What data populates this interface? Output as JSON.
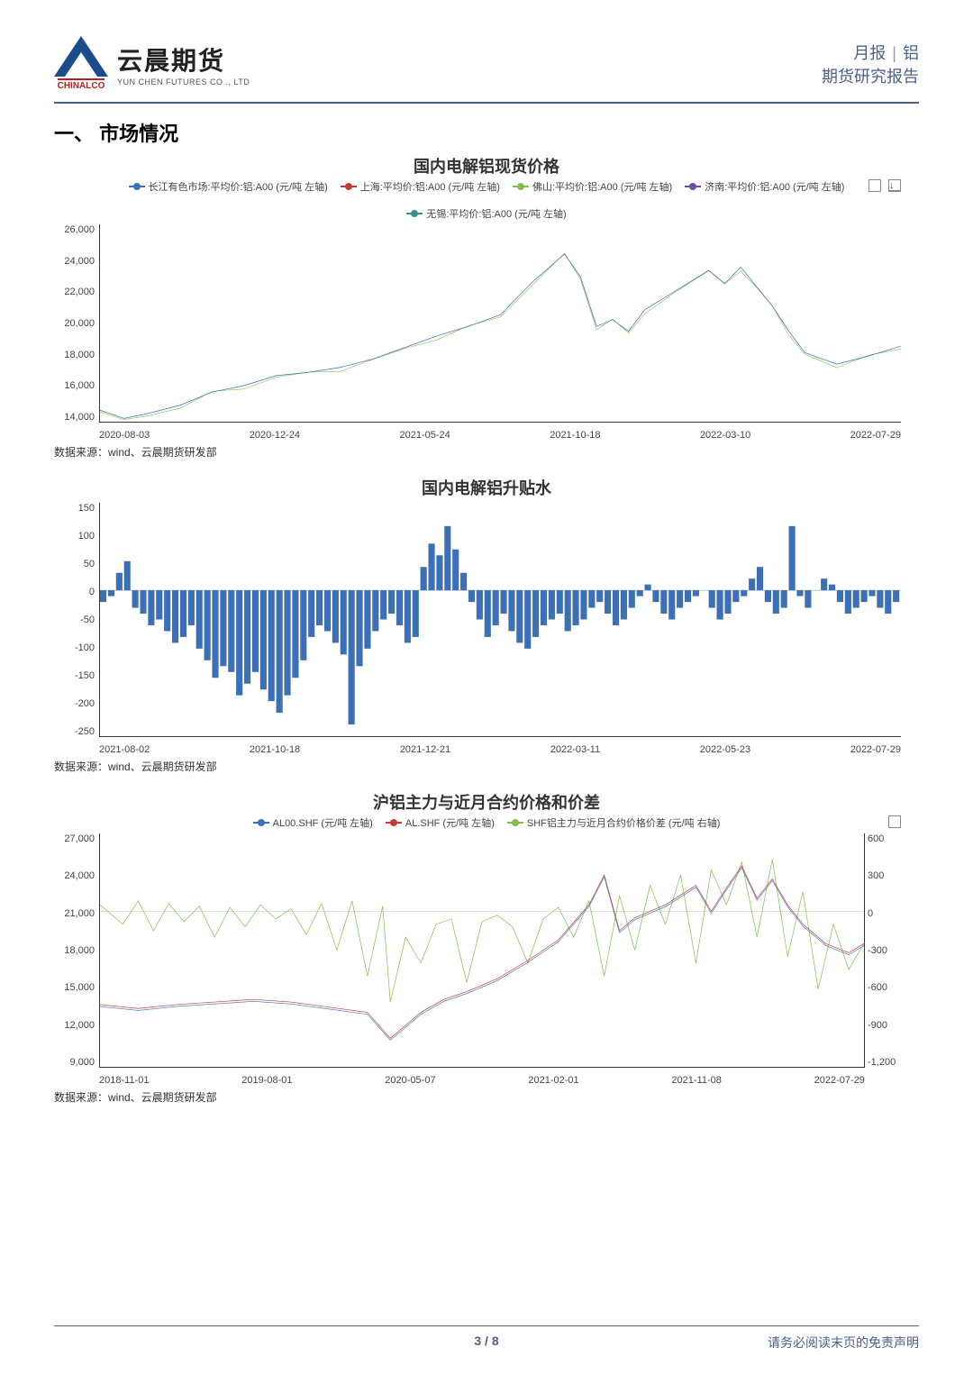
{
  "header": {
    "logo_cn": "云晨期货",
    "logo_en": "YUN CHEN FUTURES CO ., LTD",
    "chinalco": "CHINALCO",
    "right_line1_a": "月报",
    "right_line1_b": "铝",
    "right_line2": "期货研究报告"
  },
  "section_title": "一、 市场情况",
  "chart1": {
    "title": "国内电解铝现货价格",
    "type": "line",
    "legend": [
      {
        "label": "长江有色市场:平均价:铝:A00 (元/吨 左轴)",
        "color": "#3b6fb6"
      },
      {
        "label": "上海:平均价:铝:A00 (元/吨 左轴)",
        "color": "#c53a3a"
      },
      {
        "label": "佛山:平均价:铝:A00 (元/吨 左轴)",
        "color": "#7fbf4a"
      },
      {
        "label": "济南:平均价:铝:A00 (元/吨 左轴)",
        "color": "#6a4ea0"
      },
      {
        "label": "无锡:平均价:铝:A00 (元/吨 左轴)",
        "color": "#3b8f8f"
      }
    ],
    "ylim": [
      14000,
      26000
    ],
    "ytick_step": 2000,
    "y_ticks": [
      "26,000",
      "24,000",
      "22,000",
      "20,000",
      "18,000",
      "16,000",
      "14,000"
    ],
    "x_ticks": [
      "2020-08-03",
      "2020-12-24",
      "2021-05-24",
      "2021-10-18",
      "2022-03-10",
      "2022-07-29"
    ],
    "background_color": "#ffffff",
    "source": "数据来源：wind、云晨期货研发部",
    "series_main": {
      "color_a": "#3b6fb6",
      "color_b": "#7fbf4a",
      "points": [
        [
          0,
          14700
        ],
        [
          3,
          14200
        ],
        [
          6,
          14500
        ],
        [
          10,
          15000
        ],
        [
          14,
          15800
        ],
        [
          18,
          16200
        ],
        [
          22,
          16800
        ],
        [
          26,
          17000
        ],
        [
          30,
          17300
        ],
        [
          34,
          17800
        ],
        [
          38,
          18500
        ],
        [
          42,
          19200
        ],
        [
          46,
          19800
        ],
        [
          50,
          20500
        ],
        [
          54,
          22500
        ],
        [
          58,
          24200
        ],
        [
          60,
          22800
        ],
        [
          62,
          19800
        ],
        [
          64,
          20200
        ],
        [
          66,
          19500
        ],
        [
          68,
          20800
        ],
        [
          72,
          22000
        ],
        [
          76,
          23200
        ],
        [
          78,
          22400
        ],
        [
          80,
          23400
        ],
        [
          82,
          22200
        ],
        [
          84,
          21000
        ],
        [
          86,
          19500
        ],
        [
          88,
          18200
        ],
        [
          92,
          17500
        ],
        [
          96,
          18000
        ],
        [
          100,
          18600
        ]
      ]
    }
  },
  "chart2": {
    "title": "国内电解铝升贴水",
    "type": "bar",
    "ylim": [
      -250,
      150
    ],
    "ytick_step": 50,
    "y_ticks": [
      "150",
      "100",
      "50",
      "0",
      "-50",
      "-100",
      "-150",
      "-200",
      "-250"
    ],
    "x_ticks": [
      "2021-08-02",
      "2021-10-18",
      "2021-12-21",
      "2022-03-11",
      "2022-05-23",
      "2022-07-29"
    ],
    "bar_color": "#3b6fb6",
    "source": "数据来源：wind、云晨期货研发部",
    "values": [
      -20,
      -10,
      30,
      50,
      -30,
      -40,
      -60,
      -50,
      -70,
      -90,
      -80,
      -60,
      -100,
      -120,
      -150,
      -130,
      -140,
      -180,
      -160,
      -140,
      -170,
      -190,
      -210,
      -180,
      -150,
      -120,
      -80,
      -60,
      -70,
      -90,
      -110,
      -230,
      -130,
      -100,
      -70,
      -50,
      -40,
      -60,
      -90,
      -80,
      40,
      80,
      60,
      110,
      70,
      30,
      -20,
      -50,
      -80,
      -60,
      -40,
      -70,
      -90,
      -100,
      -80,
      -60,
      -50,
      -40,
      -70,
      -60,
      -50,
      -30,
      -20,
      -40,
      -60,
      -50,
      -30,
      -10,
      10,
      -20,
      -40,
      -50,
      -30,
      -20,
      -10,
      0,
      -30,
      -50,
      -40,
      -20,
      -10,
      20,
      40,
      -20,
      -40,
      -30,
      110,
      -10,
      -30,
      0,
      20,
      10,
      -20,
      -40,
      -30,
      -20,
      -10,
      -30,
      -40,
      -20
    ]
  },
  "chart3": {
    "title": "沪铝主力与近月合约价格和价差",
    "type": "line",
    "legend": [
      {
        "label": "AL00.SHF (元/吨 左轴)",
        "color": "#3b6fb6"
      },
      {
        "label": "AL.SHF (元/吨 左轴)",
        "color": "#c53a3a"
      },
      {
        "label": "SHF铝主力与近月合约价格价差 (元/吨 右轴)",
        "color": "#7fbf4a"
      }
    ],
    "ylim_left": [
      9000,
      27000
    ],
    "ytick_left_step": 3000,
    "y_ticks_left": [
      "27,000",
      "24,000",
      "21,000",
      "18,000",
      "15,000",
      "12,000",
      "9,000"
    ],
    "ylim_right": [
      -1200,
      600
    ],
    "ytick_right_step": 300,
    "y_ticks_right": [
      "600",
      "300",
      "0",
      "-300",
      "-600",
      "-900",
      "-1,200"
    ],
    "x_ticks": [
      "2018-11-01",
      "2019-08-01",
      "2020-05-07",
      "2021-02-01",
      "2021-11-08",
      "2022-07-29"
    ],
    "source": "数据来源：wind、云晨期货研发部",
    "series_price": {
      "color_main": "#c53a3a",
      "color_alt": "#3b6fb6",
      "points": [
        [
          0,
          13800
        ],
        [
          5,
          13500
        ],
        [
          10,
          13800
        ],
        [
          15,
          14000
        ],
        [
          20,
          14200
        ],
        [
          25,
          14000
        ],
        [
          30,
          13600
        ],
        [
          35,
          13200
        ],
        [
          38,
          11200
        ],
        [
          40,
          12200
        ],
        [
          42,
          13200
        ],
        [
          45,
          14200
        ],
        [
          48,
          14800
        ],
        [
          52,
          15800
        ],
        [
          56,
          17200
        ],
        [
          60,
          18800
        ],
        [
          64,
          21500
        ],
        [
          66,
          23800
        ],
        [
          68,
          19500
        ],
        [
          70,
          20500
        ],
        [
          74,
          21500
        ],
        [
          78,
          23000
        ],
        [
          80,
          21000
        ],
        [
          82,
          22800
        ],
        [
          84,
          24500
        ],
        [
          86,
          22000
        ],
        [
          88,
          23500
        ],
        [
          90,
          21500
        ],
        [
          92,
          20000
        ],
        [
          95,
          18500
        ],
        [
          98,
          17800
        ],
        [
          100,
          18500
        ]
      ]
    },
    "series_diff": {
      "color": "#7fbf4a",
      "points": [
        [
          0,
          50
        ],
        [
          3,
          -100
        ],
        [
          5,
          80
        ],
        [
          7,
          -150
        ],
        [
          9,
          60
        ],
        [
          11,
          -80
        ],
        [
          13,
          40
        ],
        [
          15,
          -200
        ],
        [
          17,
          30
        ],
        [
          19,
          -120
        ],
        [
          21,
          50
        ],
        [
          23,
          -60
        ],
        [
          25,
          20
        ],
        [
          27,
          -180
        ],
        [
          29,
          60
        ],
        [
          31,
          -300
        ],
        [
          33,
          80
        ],
        [
          35,
          -500
        ],
        [
          37,
          40
        ],
        [
          38,
          -700
        ],
        [
          40,
          -200
        ],
        [
          42,
          -400
        ],
        [
          44,
          -100
        ],
        [
          46,
          -60
        ],
        [
          48,
          -550
        ],
        [
          50,
          -80
        ],
        [
          52,
          -30
        ],
        [
          54,
          -120
        ],
        [
          56,
          -400
        ],
        [
          58,
          -60
        ],
        [
          60,
          30
        ],
        [
          62,
          -200
        ],
        [
          64,
          80
        ],
        [
          66,
          -500
        ],
        [
          68,
          120
        ],
        [
          70,
          -300
        ],
        [
          72,
          200
        ],
        [
          74,
          -100
        ],
        [
          76,
          280
        ],
        [
          78,
          -400
        ],
        [
          80,
          320
        ],
        [
          82,
          50
        ],
        [
          84,
          380
        ],
        [
          86,
          -200
        ],
        [
          88,
          400
        ],
        [
          90,
          -350
        ],
        [
          92,
          150
        ],
        [
          94,
          -600
        ],
        [
          96,
          -100
        ],
        [
          98,
          -450
        ],
        [
          100,
          -250
        ]
      ]
    }
  },
  "footer": {
    "page_current": "3",
    "page_total": "8",
    "disclaimer": "请务必阅读末页的免责声明"
  }
}
